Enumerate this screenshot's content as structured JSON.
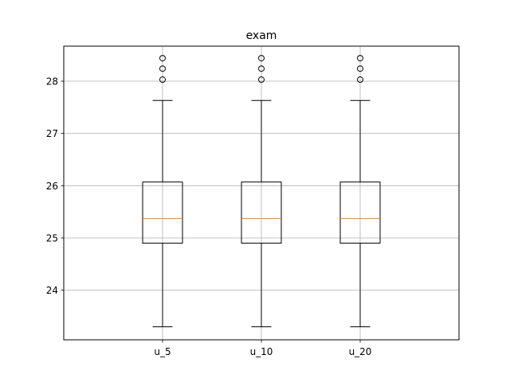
{
  "chart_data": {
    "type": "box",
    "title": "exam",
    "xlabel": "",
    "ylabel": "",
    "categories": [
      "u_5",
      "u_10",
      "u_20"
    ],
    "ylim": [
      23.05,
      28.67
    ],
    "yticks": [
      24,
      25,
      26,
      27,
      28
    ],
    "grid": true,
    "series": [
      {
        "category": "u_5",
        "whisker_low": 23.3,
        "q1": 24.9,
        "median": 25.37,
        "q3": 26.07,
        "whisker_high": 27.63,
        "outliers": [
          28.03,
          28.24,
          28.44
        ]
      },
      {
        "category": "u_10",
        "whisker_low": 23.3,
        "q1": 24.9,
        "median": 25.37,
        "q3": 26.07,
        "whisker_high": 27.63,
        "outliers": [
          28.03,
          28.24,
          28.44
        ]
      },
      {
        "category": "u_20",
        "whisker_low": 23.3,
        "q1": 24.9,
        "median": 25.37,
        "q3": 26.07,
        "whisker_high": 27.63,
        "outliers": [
          28.03,
          28.24,
          28.44
        ]
      }
    ],
    "colors": {
      "box": "#000000",
      "median": "#ff7f0e",
      "grid": "#b0b0b0",
      "outlier": "#000000"
    }
  }
}
